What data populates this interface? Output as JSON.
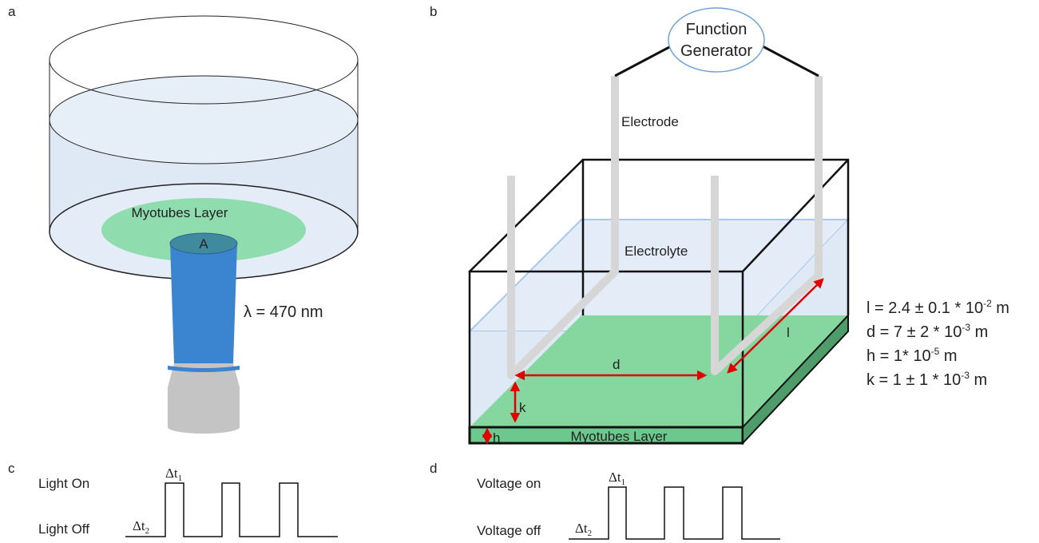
{
  "panels": {
    "a": {
      "label": "a",
      "layer_label": "Myotubes Layer",
      "area_label": "A",
      "wavelength": "λ = 470 nm"
    },
    "b": {
      "label": "b",
      "generator": [
        "Function",
        "Generator"
      ],
      "electrode": "Electrode",
      "electrolyte": "Electrolyte",
      "dims": {
        "d": "d",
        "l": "l",
        "k": "k",
        "h": "h"
      },
      "layer_label": "Myotubes Layer",
      "equations": [
        {
          "lhs": "l  = 2.4 ± 0.1 * 10",
          "exp": "-2",
          "unit": " m"
        },
        {
          "lhs": "d = 7 ± 2 * 10",
          "exp": "-3",
          "unit": " m"
        },
        {
          "lhs": "h = 1* 10",
          "exp": "-5",
          "unit": " m"
        },
        {
          "lhs": "k  = 1 ± 1 * 10",
          "exp": "-3",
          "unit": " m"
        }
      ]
    },
    "c": {
      "label": "c",
      "on": "Light On",
      "off": "Light Off",
      "dt1": {
        "base": "Δt",
        "sub": "1"
      },
      "dt2": {
        "base": "Δt",
        "sub": "2"
      }
    },
    "d": {
      "label": "d",
      "on": "Voltage on",
      "off": "Voltage off",
      "dt1": {
        "base": "Δt",
        "sub": "1"
      },
      "dt2": {
        "base": "Δt",
        "sub": "2"
      }
    }
  }
}
